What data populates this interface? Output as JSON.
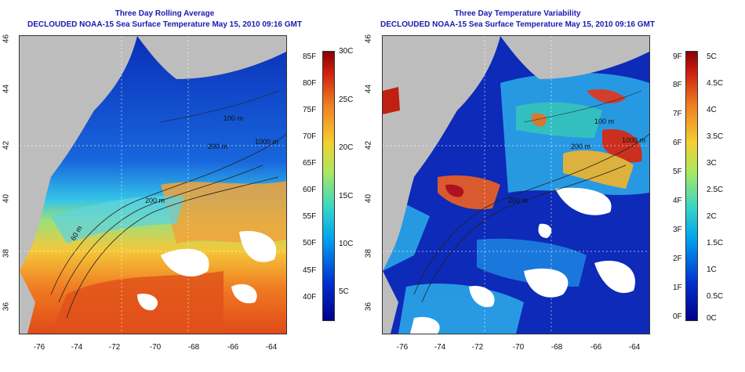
{
  "left_panel": {
    "title_line1": "Three Day Rolling Average",
    "title_line2": "DECLOUDED NOAA-15 Sea Surface Temperature May 15, 2010 09:16 GMT",
    "contour_labels": [
      "100 m",
      "200 m",
      "1000 m",
      "200 m",
      "60 m"
    ],
    "colorbar_f": [
      "85F",
      "80F",
      "75F",
      "70F",
      "65F",
      "60F",
      "55F",
      "50F",
      "45F",
      "40F"
    ],
    "colorbar_c": [
      "30C",
      "25C",
      "20C",
      "15C",
      "10C",
      "5C"
    ]
  },
  "right_panel": {
    "title_line1": "Three Day Temperature Variability",
    "title_line2": "DECLOUDED NOAA-15 Sea Surface Temperature May 15, 2010 09:16 GMT",
    "contour_labels": [
      "100 m",
      "200 m",
      "1000 m",
      "200 m"
    ],
    "colorbar_f": [
      "9F",
      "8F",
      "7F",
      "6F",
      "5F",
      "4F",
      "3F",
      "2F",
      "1F",
      "0F"
    ],
    "colorbar_c": [
      "5C",
      "4.5C",
      "4C",
      "3.5C",
      "3C",
      "2.5C",
      "2C",
      "1.5C",
      "1C",
      "0.5C",
      "0C"
    ]
  },
  "axes": {
    "lat_ticks": [
      "46",
      "44",
      "42",
      "40",
      "38",
      "36"
    ],
    "lon_ticks": [
      "-76",
      "-74",
      "-72",
      "-70",
      "-68",
      "-66",
      "-64"
    ]
  },
  "colors": {
    "title": "#1a1ab0",
    "land": "#bdbdbd",
    "cloud": "#ffffff"
  }
}
